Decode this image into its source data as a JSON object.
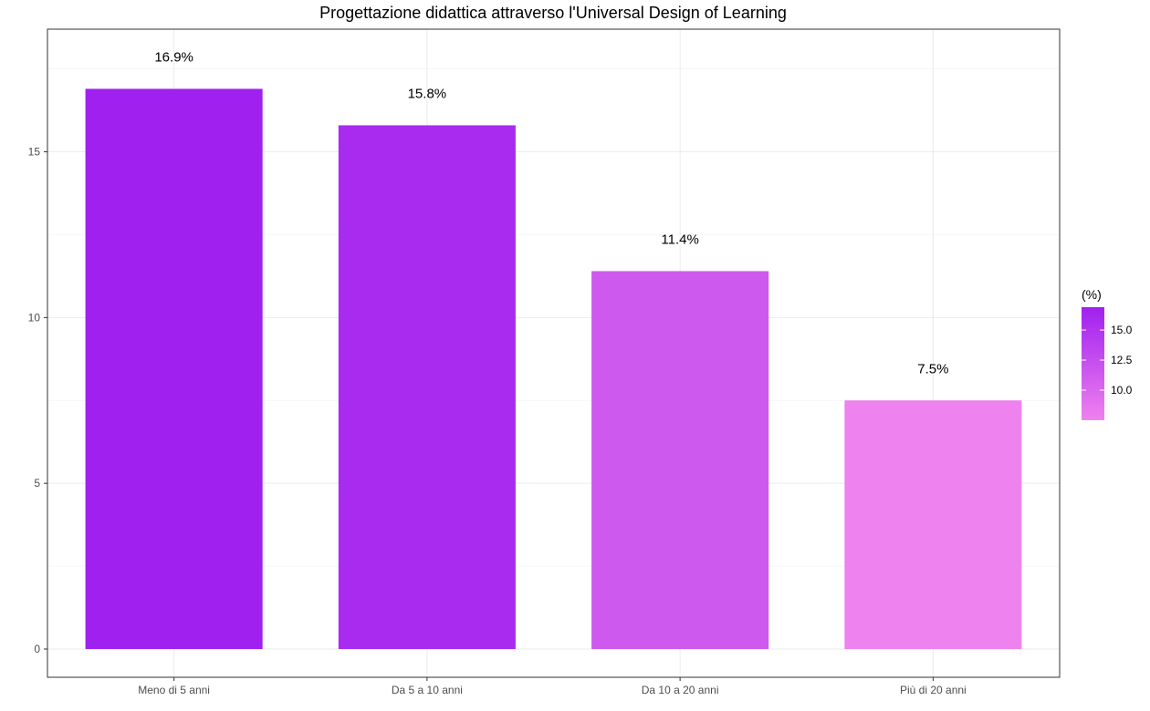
{
  "chart_data": {
    "type": "bar",
    "title": "Progettazione didattica attraverso l'Universal Design of Learning",
    "xlabel": "",
    "ylabel": "",
    "categories": [
      "Meno di 5 anni",
      "Da 5 a 10 anni",
      "Da 10 a 20 anni",
      "Più di 20 anni"
    ],
    "values": [
      16.9,
      15.8,
      11.4,
      7.5
    ],
    "data_labels": [
      "16.9%",
      "15.8%",
      "11.4%",
      "7.5%"
    ],
    "ylim": [
      0,
      18.7
    ],
    "y_ticks": [
      0,
      5,
      10,
      15
    ],
    "y_tick_labels": [
      "0",
      "5",
      "10",
      "15"
    ],
    "grid": true,
    "legend": {
      "title": "(%)",
      "placement": "right",
      "type": "colorbar",
      "range": [
        7.5,
        16.9
      ],
      "ticks": [
        10.0,
        12.5,
        15.0
      ],
      "tick_labels": [
        "10.0",
        "12.5",
        "15.0"
      ],
      "color_low": "#EE82EE",
      "color_high": "#A020F0"
    }
  }
}
